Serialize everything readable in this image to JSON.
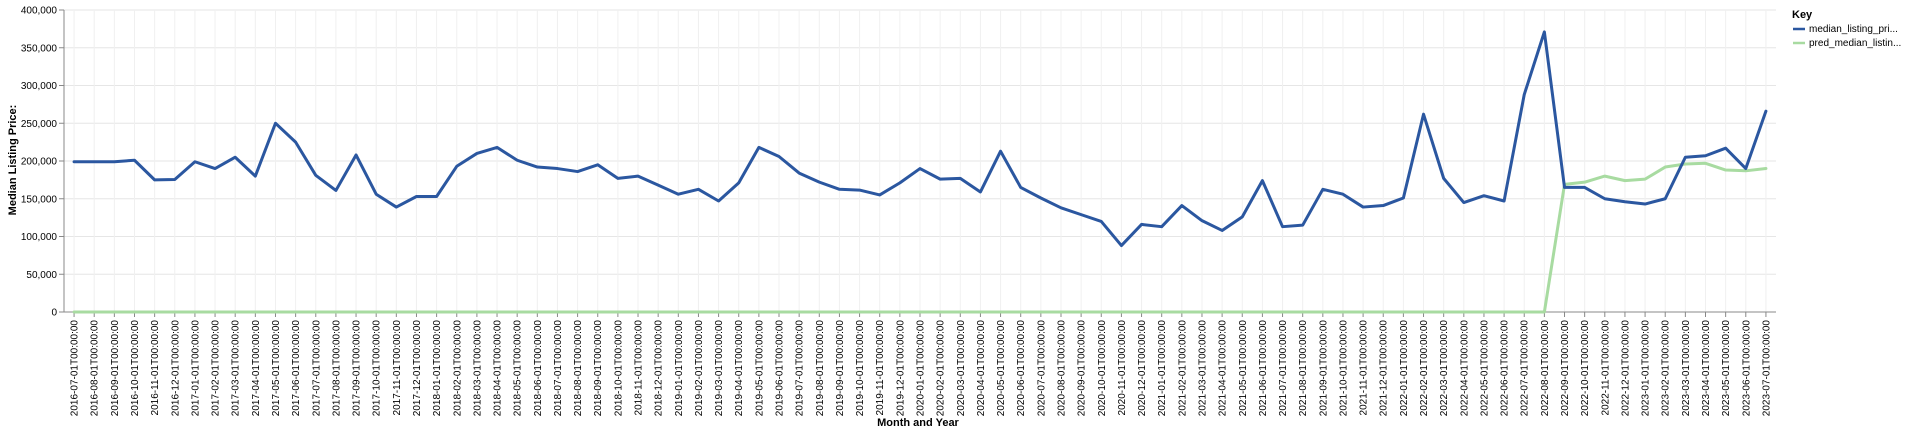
{
  "chart_data": {
    "type": "line",
    "title": "",
    "xlabel": "Month and Year",
    "ylabel": "Median Listing Price:",
    "ylim": [
      0,
      400000
    ],
    "y_ticks": [
      "0",
      "50,000",
      "100,000",
      "150,000",
      "200,000",
      "250,000",
      "300,000",
      "350,000",
      "400,000"
    ],
    "y_tick_values": [
      0,
      50000,
      100000,
      150000,
      200000,
      250000,
      300000,
      350000,
      400000
    ],
    "grid": true,
    "legend": {
      "title": "Key",
      "placement": "top-right"
    },
    "x": [
      "2016-07-01T00:00:00",
      "2016-08-01T00:00:00",
      "2016-09-01T00:00:00",
      "2016-10-01T00:00:00",
      "2016-11-01T00:00:00",
      "2016-12-01T00:00:00",
      "2017-01-01T00:00:00",
      "2017-02-01T00:00:00",
      "2017-03-01T00:00:00",
      "2017-04-01T00:00:00",
      "2017-05-01T00:00:00",
      "2017-06-01T00:00:00",
      "2017-07-01T00:00:00",
      "2017-08-01T00:00:00",
      "2017-09-01T00:00:00",
      "2017-10-01T00:00:00",
      "2017-11-01T00:00:00",
      "2017-12-01T00:00:00",
      "2018-01-01T00:00:00",
      "2018-02-01T00:00:00",
      "2018-03-01T00:00:00",
      "2018-04-01T00:00:00",
      "2018-05-01T00:00:00",
      "2018-06-01T00:00:00",
      "2018-07-01T00:00:00",
      "2018-08-01T00:00:00",
      "2018-09-01T00:00:00",
      "2018-10-01T00:00:00",
      "2018-11-01T00:00:00",
      "2018-12-01T00:00:00",
      "2019-01-01T00:00:00",
      "2019-02-01T00:00:00",
      "2019-03-01T00:00:00",
      "2019-04-01T00:00:00",
      "2019-05-01T00:00:00",
      "2019-06-01T00:00:00",
      "2019-07-01T00:00:00",
      "2019-08-01T00:00:00",
      "2019-09-01T00:00:00",
      "2019-10-01T00:00:00",
      "2019-11-01T00:00:00",
      "2019-12-01T00:00:00",
      "2020-01-01T00:00:00",
      "2020-02-01T00:00:00",
      "2020-03-01T00:00:00",
      "2020-04-01T00:00:00",
      "2020-05-01T00:00:00",
      "2020-06-01T00:00:00",
      "2020-07-01T00:00:00",
      "2020-08-01T00:00:00",
      "2020-09-01T00:00:00",
      "2020-10-01T00:00:00",
      "2020-11-01T00:00:00",
      "2020-12-01T00:00:00",
      "2021-01-01T00:00:00",
      "2021-02-01T00:00:00",
      "2021-03-01T00:00:00",
      "2021-04-01T00:00:00",
      "2021-05-01T00:00:00",
      "2021-06-01T00:00:00",
      "2021-07-01T00:00:00",
      "2021-08-01T00:00:00",
      "2021-09-01T00:00:00",
      "2021-10-01T00:00:00",
      "2021-11-01T00:00:00",
      "2021-12-01T00:00:00",
      "2022-01-01T00:00:00",
      "2022-02-01T00:00:00",
      "2022-03-01T00:00:00",
      "2022-04-01T00:00:00",
      "2022-05-01T00:00:00",
      "2022-06-01T00:00:00",
      "2022-07-01T00:00:00",
      "2022-08-01T00:00:00",
      "2022-09-01T00:00:00",
      "2022-10-01T00:00:00",
      "2022-11-01T00:00:00",
      "2022-12-01T00:00:00",
      "2023-01-01T00:00:00",
      "2023-02-01T00:00:00",
      "2023-03-01T00:00:00",
      "2023-04-01T00:00:00",
      "2023-05-01T00:00:00",
      "2023-06-01T00:00:00",
      "2023-07-01T00:00:00"
    ],
    "series": [
      {
        "name": "median_listing_pri...",
        "color": "#2b57a0",
        "values": [
          199000,
          199000,
          199000,
          201000,
          175000,
          175500,
          199000,
          190000,
          205000,
          180000,
          250000,
          225000,
          181000,
          161000,
          208000,
          156000,
          139000,
          153000,
          153000,
          193000,
          210000,
          218000,
          201000,
          192000,
          190000,
          186000,
          195000,
          177000,
          180000,
          168000,
          156000,
          162500,
          147000,
          171000,
          218000,
          206000,
          184000,
          172000,
          162500,
          161500,
          155000,
          171000,
          190000,
          176000,
          177000,
          159000,
          213000,
          165000,
          151000,
          138000,
          129000,
          120000,
          88000,
          116000,
          113000,
          141000,
          121000,
          108000,
          126000,
          174000,
          113000,
          115000,
          162500,
          156000,
          139000,
          141000,
          151000,
          262000,
          177000,
          145000,
          154000,
          147000,
          288000,
          371000,
          165000,
          165000,
          150000,
          146000,
          143000,
          150000,
          205000,
          207000,
          217000,
          190000,
          266000
        ]
      },
      {
        "name": "pred_median_listin...",
        "color": "#a8dba1",
        "values": [
          0,
          0,
          0,
          0,
          0,
          0,
          0,
          0,
          0,
          0,
          0,
          0,
          0,
          0,
          0,
          0,
          0,
          0,
          0,
          0,
          0,
          0,
          0,
          0,
          0,
          0,
          0,
          0,
          0,
          0,
          0,
          0,
          0,
          0,
          0,
          0,
          0,
          0,
          0,
          0,
          0,
          0,
          0,
          0,
          0,
          0,
          0,
          0,
          0,
          0,
          0,
          0,
          0,
          0,
          0,
          0,
          0,
          0,
          0,
          0,
          0,
          0,
          0,
          0,
          0,
          0,
          0,
          0,
          0,
          0,
          0,
          0,
          0,
          0,
          169000,
          172000,
          180000,
          174000,
          176000,
          192000,
          196000,
          197000,
          188000,
          187000,
          190000
        ]
      }
    ]
  }
}
